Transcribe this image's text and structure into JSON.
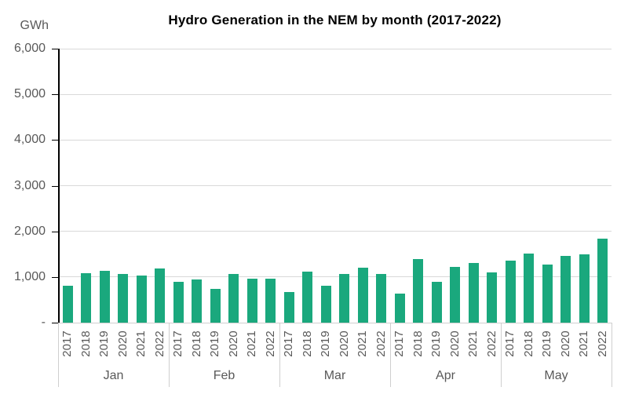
{
  "header": {
    "title": "Hydro Generation in the NEM by month (2017-2022)",
    "unit_label": "GWh"
  },
  "chart_data": {
    "type": "bar",
    "title": "Hydro Generation in the NEM by month (2017-2022)",
    "xlabel": "",
    "ylabel": "GWh",
    "ylim": [
      0,
      6000
    ],
    "grid": true,
    "legend_position": "none",
    "bar_color": "#1AA87D",
    "categories": [
      "Jan",
      "Feb",
      "Mar",
      "Apr",
      "May"
    ],
    "group_sublabels": [
      "2017",
      "2018",
      "2019",
      "2020",
      "2021",
      "2022"
    ],
    "series": [
      {
        "name": "2017",
        "values": [
          800,
          900,
          670,
          640,
          1350
        ]
      },
      {
        "name": "2018",
        "values": [
          1090,
          940,
          1110,
          1400,
          1510
        ]
      },
      {
        "name": "2019",
        "values": [
          1140,
          740,
          810,
          900,
          1280
        ]
      },
      {
        "name": "2020",
        "values": [
          1060,
          1060,
          1060,
          1220,
          1460
        ]
      },
      {
        "name": "2021",
        "values": [
          1030,
          960,
          1210,
          1310,
          1490
        ]
      },
      {
        "name": "2022",
        "values": [
          1190,
          960,
          1070,
          1100,
          1840
        ]
      }
    ],
    "y_ticks": [
      {
        "value": 0,
        "label": "-"
      },
      {
        "value": 1000,
        "label": "1,000"
      },
      {
        "value": 2000,
        "label": "2,000"
      },
      {
        "value": 3000,
        "label": "3,000"
      },
      {
        "value": 4000,
        "label": "4,000"
      },
      {
        "value": 5000,
        "label": "5,000"
      },
      {
        "value": 6000,
        "label": "6,000"
      }
    ]
  },
  "colors": {
    "bar": "#1AA87D",
    "gridline": "#d9d9d9",
    "axis_line": "#000000",
    "axis_text": "#595959",
    "title_text": "#000000"
  }
}
